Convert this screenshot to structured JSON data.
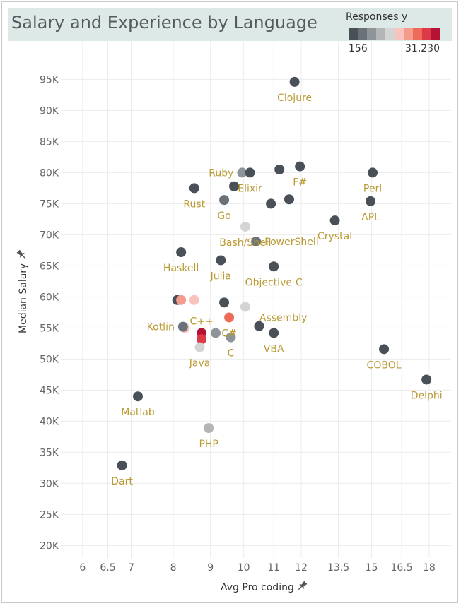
{
  "colors": {
    "title_bg": "#dde9e6",
    "label": "#b99a34",
    "grid": "#ececec",
    "legend_ramp": [
      "#4a5058",
      "#6b7178",
      "#8f9498",
      "#b3b5b7",
      "#d4d4d4",
      "#f7c3bd",
      "#f49b8c",
      "#ee6b5a",
      "#dc3a46",
      "#b51336"
    ]
  },
  "legend": {
    "title": "Responses y",
    "min_label": "156",
    "max_label": "31,230"
  },
  "chart_data": {
    "type": "scatter",
    "title": "Salary and Experience by Language",
    "xlabel": "Avg Pro coding",
    "ylabel": "Median Salary",
    "x_scale": "log",
    "xlim": [
      5.6,
      19.3
    ],
    "ylim": [
      18000,
      98000
    ],
    "x_ticks": [
      6,
      6.5,
      7,
      8,
      9,
      10,
      11,
      12,
      13.5,
      15,
      16.5,
      18
    ],
    "x_tick_labels": [
      "6",
      "6.5",
      "7",
      "8",
      "9",
      "10",
      "11",
      "12",
      "13.5",
      "15",
      "16.5",
      "18"
    ],
    "y_ticks": [
      20000,
      25000,
      30000,
      35000,
      40000,
      45000,
      50000,
      55000,
      60000,
      65000,
      70000,
      75000,
      80000,
      85000,
      90000,
      95000
    ],
    "y_tick_labels": [
      "20K",
      "25K",
      "30K",
      "35K",
      "40K",
      "45K",
      "50K",
      "55K",
      "60K",
      "65K",
      "70K",
      "75K",
      "80K",
      "85K",
      "90K",
      "95K"
    ],
    "grid": true,
    "legend_position": "top-right",
    "points": [
      {
        "x": 11.75,
        "y": 94600,
        "color": "#4a5058",
        "label": "Clojure",
        "label_pos": "below"
      },
      {
        "x": 9.95,
        "y": 80000,
        "color": "#8f9498",
        "label": "Ruby",
        "label_pos": "left"
      },
      {
        "x": 10.2,
        "y": 80000,
        "color": "#4a5058",
        "label": "Elixir",
        "label_pos": "below"
      },
      {
        "x": 11.2,
        "y": 80500,
        "color": "#4a5058",
        "label": "",
        "label_pos": "none"
      },
      {
        "x": 11.95,
        "y": 81000,
        "color": "#4a5058",
        "label": "F#",
        "label_pos": "below"
      },
      {
        "x": 15.05,
        "y": 80000,
        "color": "#4a5058",
        "label": "Perl",
        "label_pos": "below"
      },
      {
        "x": 8.55,
        "y": 77500,
        "color": "#4a5058",
        "label": "Rust",
        "label_pos": "below"
      },
      {
        "x": 9.7,
        "y": 77800,
        "color": "#4a5058",
        "label": "",
        "label_pos": "none"
      },
      {
        "x": 9.4,
        "y": 75600,
        "color": "#6b7178",
        "label": "Go",
        "label_pos": "below"
      },
      {
        "x": 10.9,
        "y": 75000,
        "color": "#4a5058",
        "label": "",
        "label_pos": "none"
      },
      {
        "x": 11.55,
        "y": 75700,
        "color": "#4a5058",
        "label": "",
        "label_pos": "none"
      },
      {
        "x": 14.95,
        "y": 75400,
        "color": "#4a5058",
        "label": "APL",
        "label_pos": "below"
      },
      {
        "x": 13.35,
        "y": 72300,
        "color": "#4a5058",
        "label": "Crystal",
        "label_pos": "below"
      },
      {
        "x": 10.05,
        "y": 71300,
        "color": "#d4d4d4",
        "label": "Bash/Shell",
        "label_pos": "below"
      },
      {
        "x": 10.4,
        "y": 68900,
        "color": "#6b7178",
        "label": "PowerShell",
        "label_pos": "right"
      },
      {
        "x": 8.2,
        "y": 67200,
        "color": "#4a5058",
        "label": "Haskell",
        "label_pos": "below"
      },
      {
        "x": 9.3,
        "y": 65900,
        "color": "#4a5058",
        "label": "Julia",
        "label_pos": "below"
      },
      {
        "x": 11.0,
        "y": 64900,
        "color": "#4a5058",
        "label": "Objective-C",
        "label_pos": "below"
      },
      {
        "x": 8.1,
        "y": 59500,
        "color": "#4a5058",
        "label": "",
        "label_pos": "none"
      },
      {
        "x": 8.2,
        "y": 59500,
        "color": "#f49b8c",
        "label": "",
        "label_pos": "none"
      },
      {
        "x": 8.55,
        "y": 59500,
        "color": "#f7c3bd",
        "label": "",
        "label_pos": "none"
      },
      {
        "x": 9.4,
        "y": 59100,
        "color": "#4a5058",
        "label": "",
        "label_pos": "none"
      },
      {
        "x": 10.05,
        "y": 58400,
        "color": "#d4d4d4",
        "label": "Assembly",
        "label_pos": "below-right"
      },
      {
        "x": 9.55,
        "y": 56700,
        "color": "#ee6b5a",
        "label": "C#",
        "label_pos": "below"
      },
      {
        "x": 8.3,
        "y": 55000,
        "color": "#f7c3bd",
        "label": "",
        "label_pos": "none"
      },
      {
        "x": 8.25,
        "y": 55200,
        "color": "#6b7178",
        "label": "Kotlin",
        "label_pos": "left"
      },
      {
        "x": 8.75,
        "y": 54200,
        "color": "#b51336",
        "label": "C++",
        "label_pos": "above"
      },
      {
        "x": 8.75,
        "y": 53200,
        "color": "#dc3a46",
        "label": "",
        "label_pos": "none"
      },
      {
        "x": 9.15,
        "y": 54200,
        "color": "#8f9498",
        "label": "",
        "label_pos": "none"
      },
      {
        "x": 9.6,
        "y": 53500,
        "color": "#8f9498",
        "label": "C",
        "label_pos": "below"
      },
      {
        "x": 10.5,
        "y": 55300,
        "color": "#4a5058",
        "label": "",
        "label_pos": "none"
      },
      {
        "x": 11.0,
        "y": 54200,
        "color": "#4a5058",
        "label": "VBA",
        "label_pos": "below"
      },
      {
        "x": 8.7,
        "y": 51900,
        "color": "#d4d4d4",
        "label": "Java",
        "label_pos": "below"
      },
      {
        "x": 15.6,
        "y": 51600,
        "color": "#4a5058",
        "label": "COBOL",
        "label_pos": "below"
      },
      {
        "x": 17.85,
        "y": 46700,
        "color": "#4a5058",
        "label": "Delphi",
        "label_pos": "below"
      },
      {
        "x": 7.15,
        "y": 44000,
        "color": "#4a5058",
        "label": "Matlab",
        "label_pos": "below"
      },
      {
        "x": 8.95,
        "y": 38900,
        "color": "#b3b5b7",
        "label": "PHP",
        "label_pos": "below"
      },
      {
        "x": 6.8,
        "y": 32900,
        "color": "#4a5058",
        "label": "Dart",
        "label_pos": "below"
      }
    ]
  }
}
